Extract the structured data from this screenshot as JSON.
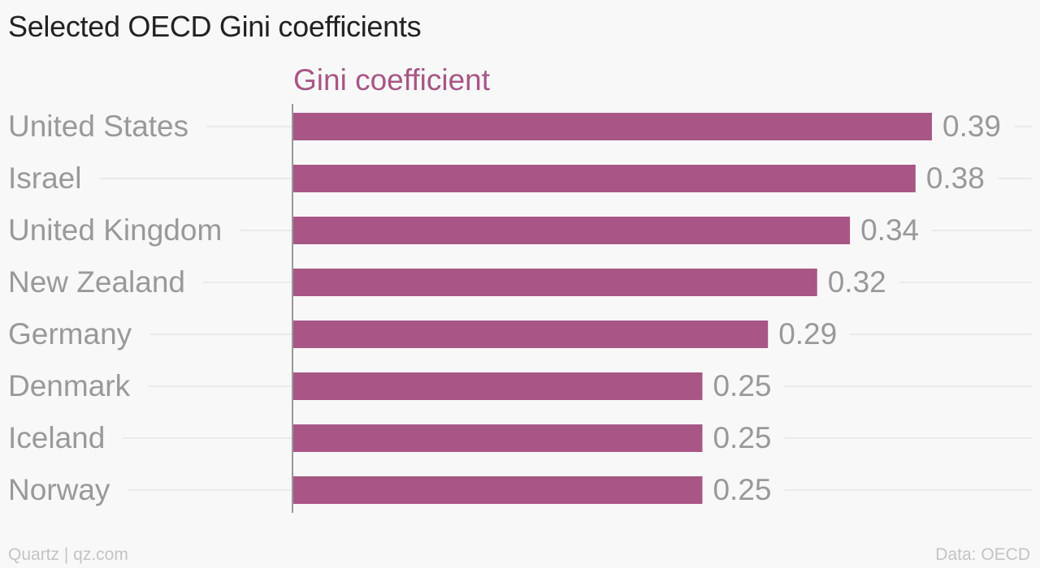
{
  "title": "Selected OECD Gini coefficients",
  "footer": {
    "source_left": "Quartz | qz.com",
    "source_right": "Data: OECD"
  },
  "colors": {
    "bar": "#a85686",
    "series_label": "#a85686",
    "category_label": "#999999",
    "value_label": "#999999",
    "gridline": "#e6e6e6",
    "axis": "#999999"
  },
  "chart_data": {
    "type": "bar",
    "orientation": "horizontal",
    "categories": [
      "United States",
      "Israel",
      "United Kingdom",
      "New Zealand",
      "Germany",
      "Denmark",
      "Iceland",
      "Norway"
    ],
    "series": [
      {
        "name": "Gini coefficient",
        "values": [
          0.39,
          0.38,
          0.34,
          0.32,
          0.29,
          0.25,
          0.25,
          0.25
        ],
        "value_labels": [
          "0.39",
          "0.38",
          "0.34",
          "0.32",
          "0.29",
          "0.25",
          "0.25",
          "0.25"
        ]
      }
    ],
    "xlim": [
      0,
      0.44
    ],
    "grid": true,
    "legend": "top-left"
  }
}
